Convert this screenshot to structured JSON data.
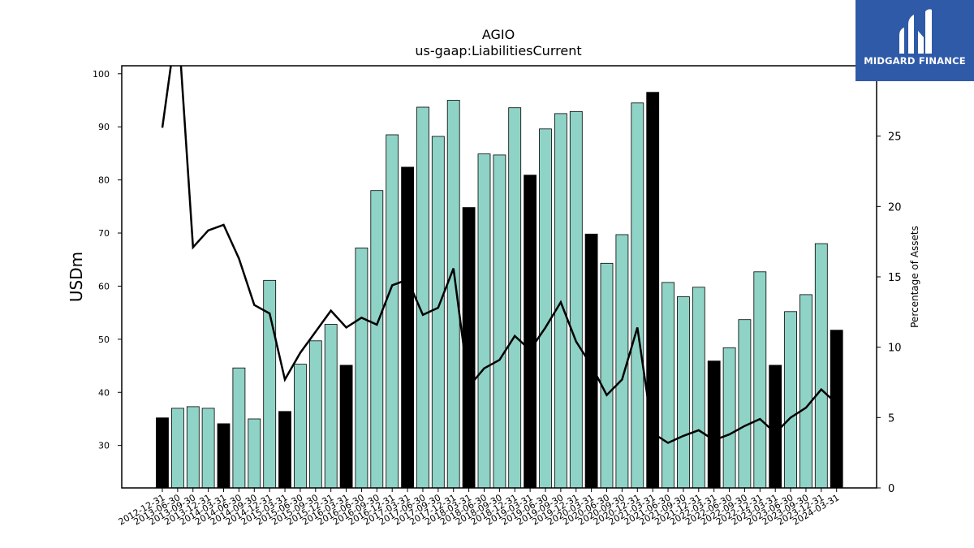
{
  "chart_data": {
    "type": "bar",
    "title": "AGIO",
    "subtitle": "us-gaap:LiabilitiesCurrent",
    "ylabel": "USDm",
    "y2label": "Percentage of Assets",
    "ylim": [
      22,
      101.5
    ],
    "y2lim": [
      0,
      30
    ],
    "yticks": [
      30,
      40,
      50,
      60,
      70,
      80,
      90,
      100
    ],
    "y2ticks": [
      0,
      5,
      10,
      15,
      20,
      25
    ],
    "categories": [
      "2012-12-31",
      "2013-06-30",
      "2013-09-30",
      "2013-12-31",
      "2014-03-31",
      "2014-06-30",
      "2014-09-30",
      "2014-12-31",
      "2015-03-31",
      "2015-06-30",
      "2015-09-30",
      "2015-12-31",
      "2016-03-31",
      "2016-06-30",
      "2016-09-30",
      "2016-12-31",
      "2017-03-31",
      "2017-06-30",
      "2017-09-30",
      "2017-12-31",
      "2018-03-31",
      "2018-06-30",
      "2018-09-30",
      "2018-12-31",
      "2019-03-31",
      "2019-06-30",
      "2019-09-30",
      "2019-12-31",
      "2020-03-31",
      "2020-06-30",
      "2020-09-30",
      "2020-12-31",
      "2021-03-31",
      "2021-06-30",
      "2021-09-30",
      "2021-12-31",
      "2022-03-31",
      "2022-06-30",
      "2022-09-30",
      "2022-12-31",
      "2023-03-31",
      "2023-06-30",
      "2023-09-30",
      "2023-12-31",
      "2024-03-31"
    ],
    "series": [
      {
        "values": [
          35.2,
          37.0,
          37.3,
          37.0,
          34.1,
          44.6,
          35.0,
          61.1,
          36.4,
          45.3,
          49.7,
          52.8,
          45.1,
          67.2,
          78.0,
          88.5,
          82.4,
          93.7,
          88.2,
          95.0,
          74.8,
          84.9,
          84.7,
          93.6,
          80.9,
          89.6,
          92.5,
          92.9,
          69.8,
          64.3,
          69.7,
          94.5,
          96.5,
          60.7,
          58.0,
          59.8,
          45.9,
          48.4,
          53.7,
          62.7,
          45.1,
          55.2,
          58.4,
          68.0,
          51.7
        ]
      },
      {
        "values": [
          25.6,
          33.5,
          17.1,
          18.3,
          18.7,
          16.3,
          13.0,
          12.4,
          7.7,
          9.6,
          11.1,
          12.6,
          11.4,
          12.1,
          11.6,
          14.4,
          14.8,
          12.3,
          12.8,
          15.6,
          7.2,
          8.5,
          9.1,
          10.8,
          9.8,
          11.4,
          13.2,
          10.4,
          8.7,
          6.6,
          7.7,
          11.4,
          3.9,
          3.2,
          3.7,
          4.1,
          3.4,
          3.8,
          4.4,
          4.9,
          3.9,
          5.0,
          5.7,
          7.0,
          6.0
        ]
      }
    ],
    "highlight_color": "#000000",
    "bar_color": "#8fd3c7",
    "line_color": "#000000",
    "grid": false
  },
  "logo": {
    "brand": "MIDGARD FINANCE"
  }
}
